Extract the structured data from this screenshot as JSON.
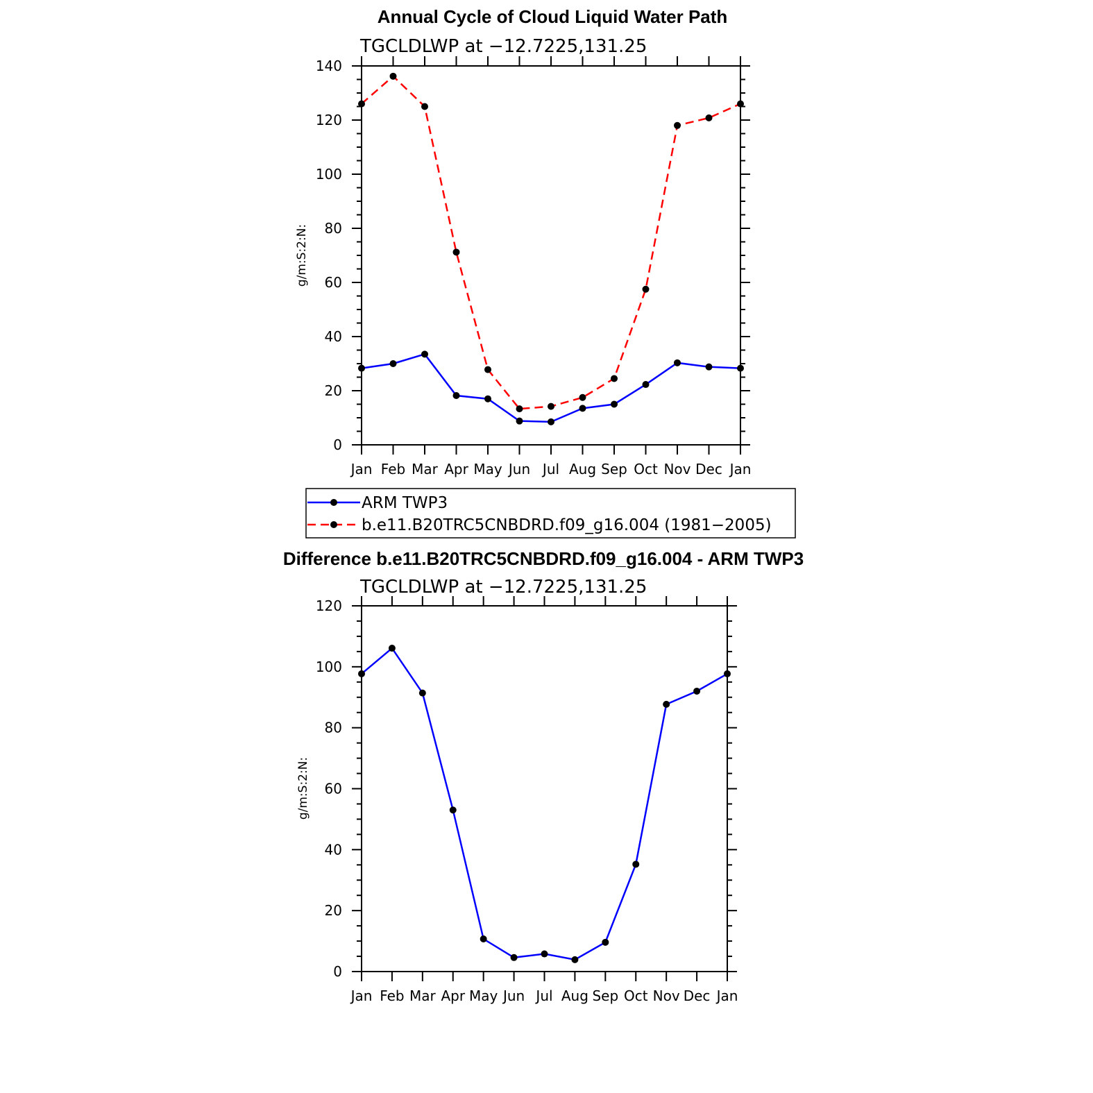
{
  "chart_data": [
    {
      "type": "line",
      "title": "Annual Cycle of Cloud Liquid Water Path",
      "subtitle": "TGCLDLWP at −12.7225,131.25",
      "ylabel": "g/m:S:2:N:",
      "xlabel": "",
      "ylim": [
        0,
        140
      ],
      "yticks": [
        "0",
        "20",
        "40",
        "60",
        "80",
        "100",
        "120",
        "140"
      ],
      "categories": [
        "Jan",
        "Feb",
        "Mar",
        "Apr",
        "May",
        "Jun",
        "Jul",
        "Aug",
        "Sep",
        "Oct",
        "Nov",
        "Dec",
        "Jan"
      ],
      "grid": false,
      "legend": "below",
      "series": [
        {
          "name": "ARM TWP3",
          "color": "#0000ff",
          "dash": "solid",
          "values": [
            28.3,
            30.0,
            33.5,
            18.2,
            17.0,
            8.8,
            8.5,
            13.5,
            15.0,
            22.3,
            30.3,
            28.8,
            28.3
          ]
        },
        {
          "name": "b.e11.B20TRC5CNBDRD.f09_g16.004 (1981−2005)",
          "color": "#ff0000",
          "dash": "dashed",
          "values": [
            126.0,
            136.2,
            125.0,
            71.2,
            27.8,
            13.3,
            14.2,
            17.5,
            24.5,
            57.5,
            118.0,
            120.8,
            126.0
          ]
        }
      ]
    },
    {
      "type": "line",
      "title": "Difference b.e11.B20TRC5CNBDRD.f09_g16.004 - ARM TWP3",
      "subtitle": "TGCLDLWP at −12.7225,131.25",
      "ylabel": "g/m:S:2:N:",
      "xlabel": "",
      "ylim": [
        0,
        120
      ],
      "yticks": [
        "0",
        "20",
        "40",
        "60",
        "80",
        "100",
        "120"
      ],
      "categories": [
        "Jan",
        "Feb",
        "Mar",
        "Apr",
        "May",
        "Jun",
        "Jul",
        "Aug",
        "Sep",
        "Oct",
        "Nov",
        "Dec",
        "Jan"
      ],
      "grid": false,
      "series": [
        {
          "color": "#0000ff",
          "dash": "solid",
          "values": [
            97.7,
            106.1,
            91.4,
            53.0,
            10.7,
            4.6,
            5.8,
            3.9,
            9.6,
            35.2,
            87.7,
            92.0,
            97.7
          ]
        }
      ]
    }
  ],
  "legend": {
    "entries": [
      {
        "label": "ARM TWP3",
        "color": "#0000ff",
        "dash": "solid"
      },
      {
        "label": "b.e11.B20TRC5CNBDRD.f09_g16.004 (1981−2005)",
        "color": "#ff0000",
        "dash": "dashed"
      }
    ]
  }
}
